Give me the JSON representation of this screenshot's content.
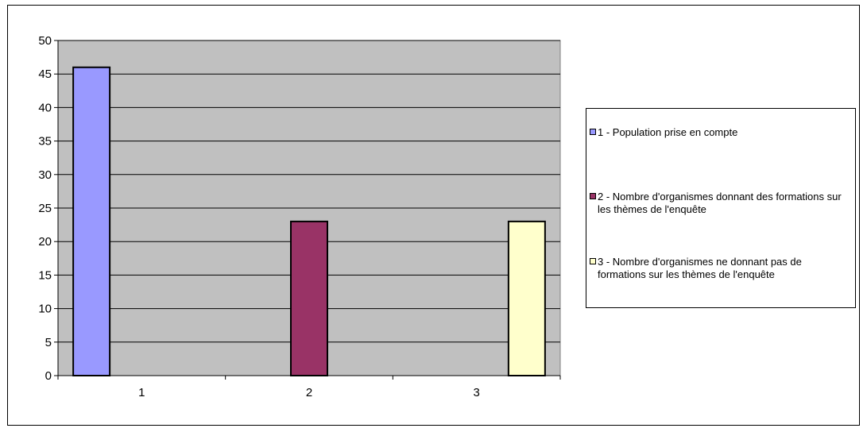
{
  "chart_data": {
    "type": "bar",
    "categories": [
      "1",
      "2",
      "3"
    ],
    "series": [
      {
        "name": "1 - Population prise en compte",
        "values": [
          46,
          null,
          null
        ],
        "color": "#9999ff"
      },
      {
        "name": "2 - Nombre d'organismes donnant des formations sur les thèmes de l'enquête",
        "values": [
          null,
          23,
          null
        ],
        "color": "#993366"
      },
      {
        "name": "3 - Nombre d'organismes ne donnant pas de formations sur les thèmes de l'enquête",
        "values": [
          null,
          null,
          23
        ],
        "color": "#ffffcc"
      }
    ],
    "ylim": [
      0,
      50
    ],
    "yticks": [
      0,
      5,
      10,
      15,
      20,
      25,
      30,
      35,
      40,
      45,
      50
    ],
    "title": "",
    "xlabel": "",
    "ylabel": "",
    "grid": true,
    "plot_background": "#c0c0c0",
    "legend_position": "right"
  },
  "legend": {
    "items": [
      {
        "label": "1 - Population prise en compte",
        "color": "#9999ff"
      },
      {
        "label": "2 - Nombre d'organismes donnant des formations sur les thèmes de l'enquête",
        "color": "#993366"
      },
      {
        "label": "3 - Nombre d'organismes ne donnant pas de formations sur les thèmes de l'enquête",
        "color": "#ffffcc"
      }
    ]
  }
}
